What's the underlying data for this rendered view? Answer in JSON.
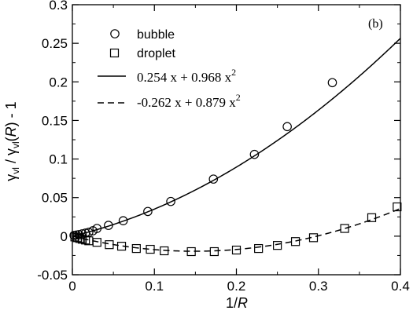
{
  "chart_data": {
    "type": "scatter",
    "panel_label": "(b)",
    "xlabel_prefix": "1/",
    "xlabel_var": "R",
    "ylabel": {
      "g1": "γ",
      "s1": "vl",
      "slash": " / ",
      "g2": "γ",
      "s2": "vl",
      "open": "(",
      "var": "R",
      "close": ")",
      "tail": " - 1"
    },
    "xlim": [
      0,
      0.4
    ],
    "ylim": [
      -0.05,
      0.3
    ],
    "xticks": [
      0,
      0.1,
      0.2,
      0.3,
      0.4
    ],
    "xtick_labels": [
      "0",
      "0.1",
      "0.2",
      "0.3",
      "0.4"
    ],
    "yticks": [
      -0.05,
      0,
      0.05,
      0.1,
      0.15,
      0.2,
      0.25,
      0.3
    ],
    "ytick_labels": [
      "-0.05",
      "0",
      "0.05",
      "0.1",
      "0.15",
      "0.2",
      "0.25",
      "0.3"
    ],
    "legend_position": "top-left",
    "series": [
      {
        "name": "bubble",
        "marker": "circle",
        "x": [
          0.002,
          0.005,
          0.008,
          0.012,
          0.016,
          0.02,
          0.025,
          0.03,
          0.044,
          0.062,
          0.092,
          0.12,
          0.172,
          0.222,
          0.262,
          0.317
        ],
        "y": [
          0.001,
          0.0015,
          0.002,
          0.003,
          0.004,
          0.005,
          0.007,
          0.01,
          0.014,
          0.02,
          0.032,
          0.045,
          0.074,
          0.106,
          0.142,
          0.199
        ]
      },
      {
        "name": "droplet",
        "marker": "square",
        "x": [
          0.003,
          0.006,
          0.009,
          0.012,
          0.016,
          0.02,
          0.03,
          0.045,
          0.06,
          0.078,
          0.095,
          0.112,
          0.145,
          0.173,
          0.2,
          0.227,
          0.25,
          0.272,
          0.294,
          0.332,
          0.365,
          0.396
        ],
        "y": [
          -0.001,
          -0.002,
          -0.003,
          -0.004,
          -0.005,
          -0.006,
          -0.008,
          -0.011,
          -0.013,
          -0.016,
          -0.017,
          -0.019,
          -0.02,
          -0.02,
          -0.018,
          -0.016,
          -0.012,
          -0.007,
          -0.002,
          0.01,
          0.024,
          0.038
        ]
      }
    ],
    "fits": [
      {
        "label": "0.254 x + 0.968 x",
        "exponent": "2",
        "a": 0.254,
        "b": 0.968,
        "style": "solid"
      },
      {
        "label": "-0.262 x + 0.879 x",
        "exponent": "2",
        "a": -0.262,
        "b": 0.879,
        "style": "dashed"
      }
    ]
  }
}
